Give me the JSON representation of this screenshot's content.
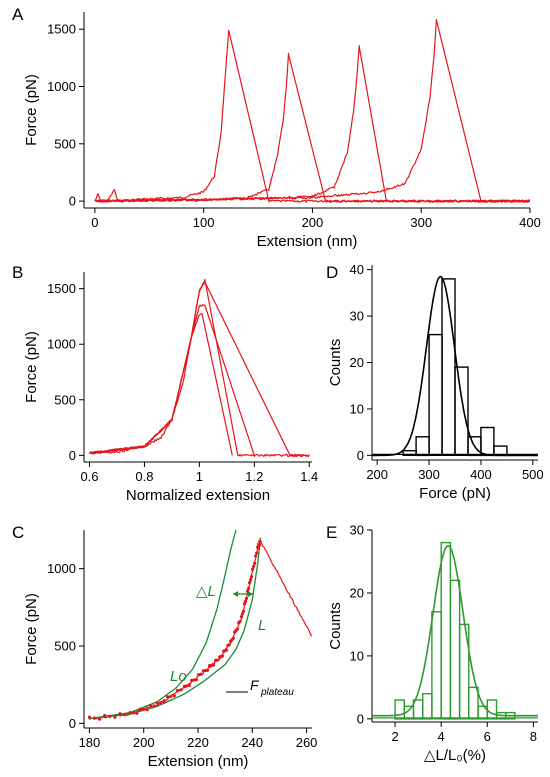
{
  "chart_data": [
    {
      "panel": "A",
      "type": "line",
      "xlabel": "Extension (nm)",
      "ylabel": "Force (pN)",
      "xlim": [
        -10,
        400
      ],
      "ylim": [
        -60,
        1650
      ],
      "xticks": [
        0,
        100,
        200,
        300,
        400
      ],
      "yticks": [
        0,
        500,
        1000,
        1500
      ],
      "grid": false,
      "color": "#e8141c",
      "series": [
        {
          "x": [
            0,
            3,
            5,
            8,
            12,
            18,
            21,
            40,
            80,
            100,
            110,
            116,
            120,
            123,
            160,
            400
          ],
          "y": [
            0,
            60,
            10,
            0,
            5,
            100,
            0,
            15,
            30,
            80,
            220,
            600,
            1100,
            1490,
            0,
            0
          ]
        },
        {
          "x": [
            0,
            100,
            140,
            160,
            168,
            173,
            176,
            178,
            212,
            400
          ],
          "y": [
            0,
            10,
            30,
            100,
            400,
            700,
            1000,
            1280,
            0,
            0
          ]
        },
        {
          "x": [
            0,
            150,
            200,
            220,
            232,
            238,
            241,
            243,
            268,
            400
          ],
          "y": [
            0,
            20,
            40,
            120,
            420,
            800,
            1100,
            1350,
            0,
            0
          ]
        },
        {
          "x": [
            0,
            200,
            260,
            285,
            300,
            308,
            312,
            314,
            355,
            400
          ],
          "y": [
            0,
            30,
            80,
            150,
            450,
            900,
            1300,
            1580,
            0,
            0
          ]
        }
      ]
    },
    {
      "panel": "B",
      "type": "line",
      "xlabel": "Normalized extension",
      "ylabel": "Force (pN)",
      "xlim": [
        0.58,
        1.41
      ],
      "ylim": [
        -60,
        1650
      ],
      "xticks": [
        0.6,
        0.8,
        1.0,
        1.2,
        1.4
      ],
      "yticks": [
        0,
        500,
        1000,
        1500
      ],
      "grid": false,
      "color": "#e8141c",
      "series": [
        {
          "x": [
            0.6,
            0.7,
            0.8,
            0.86,
            0.9,
            0.94,
            0.97,
            1.0,
            1.02,
            1.14,
            1.4
          ],
          "y": [
            20,
            30,
            80,
            160,
            320,
            650,
            1050,
            1480,
            1580,
            0,
            0
          ]
        },
        {
          "x": [
            0.6,
            0.8,
            0.9,
            0.97,
            1.0,
            1.01,
            1.12
          ],
          "y": [
            20,
            80,
            320,
            1050,
            1270,
            1270,
            0
          ]
        },
        {
          "x": [
            0.6,
            0.8,
            0.9,
            0.97,
            1.0,
            1.02,
            1.2
          ],
          "y": [
            20,
            80,
            320,
            1050,
            1350,
            1350,
            0
          ]
        },
        {
          "x": [
            0.6,
            0.8,
            0.9,
            0.97,
            1.0,
            1.02,
            1.33,
            1.4
          ],
          "y": [
            20,
            80,
            320,
            1050,
            1480,
            1560,
            0,
            0
          ]
        }
      ]
    },
    {
      "panel": "C",
      "type": "line",
      "xlabel": "Extension (nm)",
      "ylabel": "Force (pN)",
      "xlim": [
        178,
        262
      ],
      "ylim": [
        -30,
        1250
      ],
      "xticks": [
        180,
        200,
        220,
        240,
        260
      ],
      "yticks": [
        0,
        500,
        1000
      ],
      "grid": false,
      "annotations": [
        "△L",
        "L",
        "Lo",
        "F",
        "plateau"
      ],
      "series": [
        {
          "color": "#e8141c",
          "x": [
            180,
            195,
            205,
            215,
            222,
            228,
            232,
            236,
            239,
            242,
            243,
            262
          ],
          "y": [
            30,
            60,
            120,
            230,
            330,
            420,
            520,
            680,
            900,
            1130,
            1180,
            560
          ]
        },
        {
          "color": "#1a8a3a",
          "x": [
            180,
            195,
            205,
            212,
            218,
            223,
            227,
            230,
            232,
            234
          ],
          "y": [
            30,
            70,
            140,
            230,
            350,
            520,
            740,
            960,
            1120,
            1250
          ]
        },
        {
          "color": "#1a8a3a",
          "x": [
            180,
            195,
            205,
            215,
            222,
            230,
            234,
            237,
            240,
            242,
            243
          ],
          "y": [
            30,
            60,
            110,
            190,
            270,
            380,
            480,
            600,
            800,
            1030,
            1200
          ]
        }
      ]
    },
    {
      "panel": "D",
      "type": "bar",
      "xlabel": "Force (pN)",
      "ylabel": "Counts",
      "xlim": [
        190,
        510
      ],
      "ylim": [
        -1,
        41
      ],
      "xticks": [
        200,
        300,
        400,
        500
      ],
      "yticks": [
        0,
        10,
        20,
        30,
        40
      ],
      "grid": false,
      "bin_width": 25,
      "bins": [
        262.5,
        287.5,
        312.5,
        337.5,
        362.5,
        387.5,
        412.5,
        437.5
      ],
      "values": [
        1,
        4,
        26,
        38,
        19,
        4,
        6,
        2
      ],
      "fit_curve": {
        "type": "gaussian",
        "mean": 322,
        "sigma": 27,
        "peak": 38.5
      },
      "color": "#000000"
    },
    {
      "panel": "E",
      "type": "bar",
      "xlabel": "△L/L₀(%)",
      "ylabel": "Counts",
      "xlim": [
        1,
        8.2
      ],
      "ylim": [
        -0.5,
        30
      ],
      "xticks": [
        2,
        4,
        6,
        8
      ],
      "yticks": [
        0,
        10,
        20,
        30
      ],
      "grid": false,
      "bin_width": 0.4,
      "bins": [
        2.2,
        2.6,
        3.0,
        3.4,
        3.8,
        4.2,
        4.6,
        5.0,
        5.4,
        5.8,
        6.2,
        6.6,
        7.0
      ],
      "values": [
        3,
        2,
        3,
        4,
        17,
        28,
        22,
        15,
        5,
        2,
        3,
        1,
        1
      ],
      "fit_curve": {
        "type": "gaussian",
        "mean": 4.3,
        "sigma": 0.65,
        "peak": 27
      },
      "color": "#2e9a2e"
    }
  ]
}
